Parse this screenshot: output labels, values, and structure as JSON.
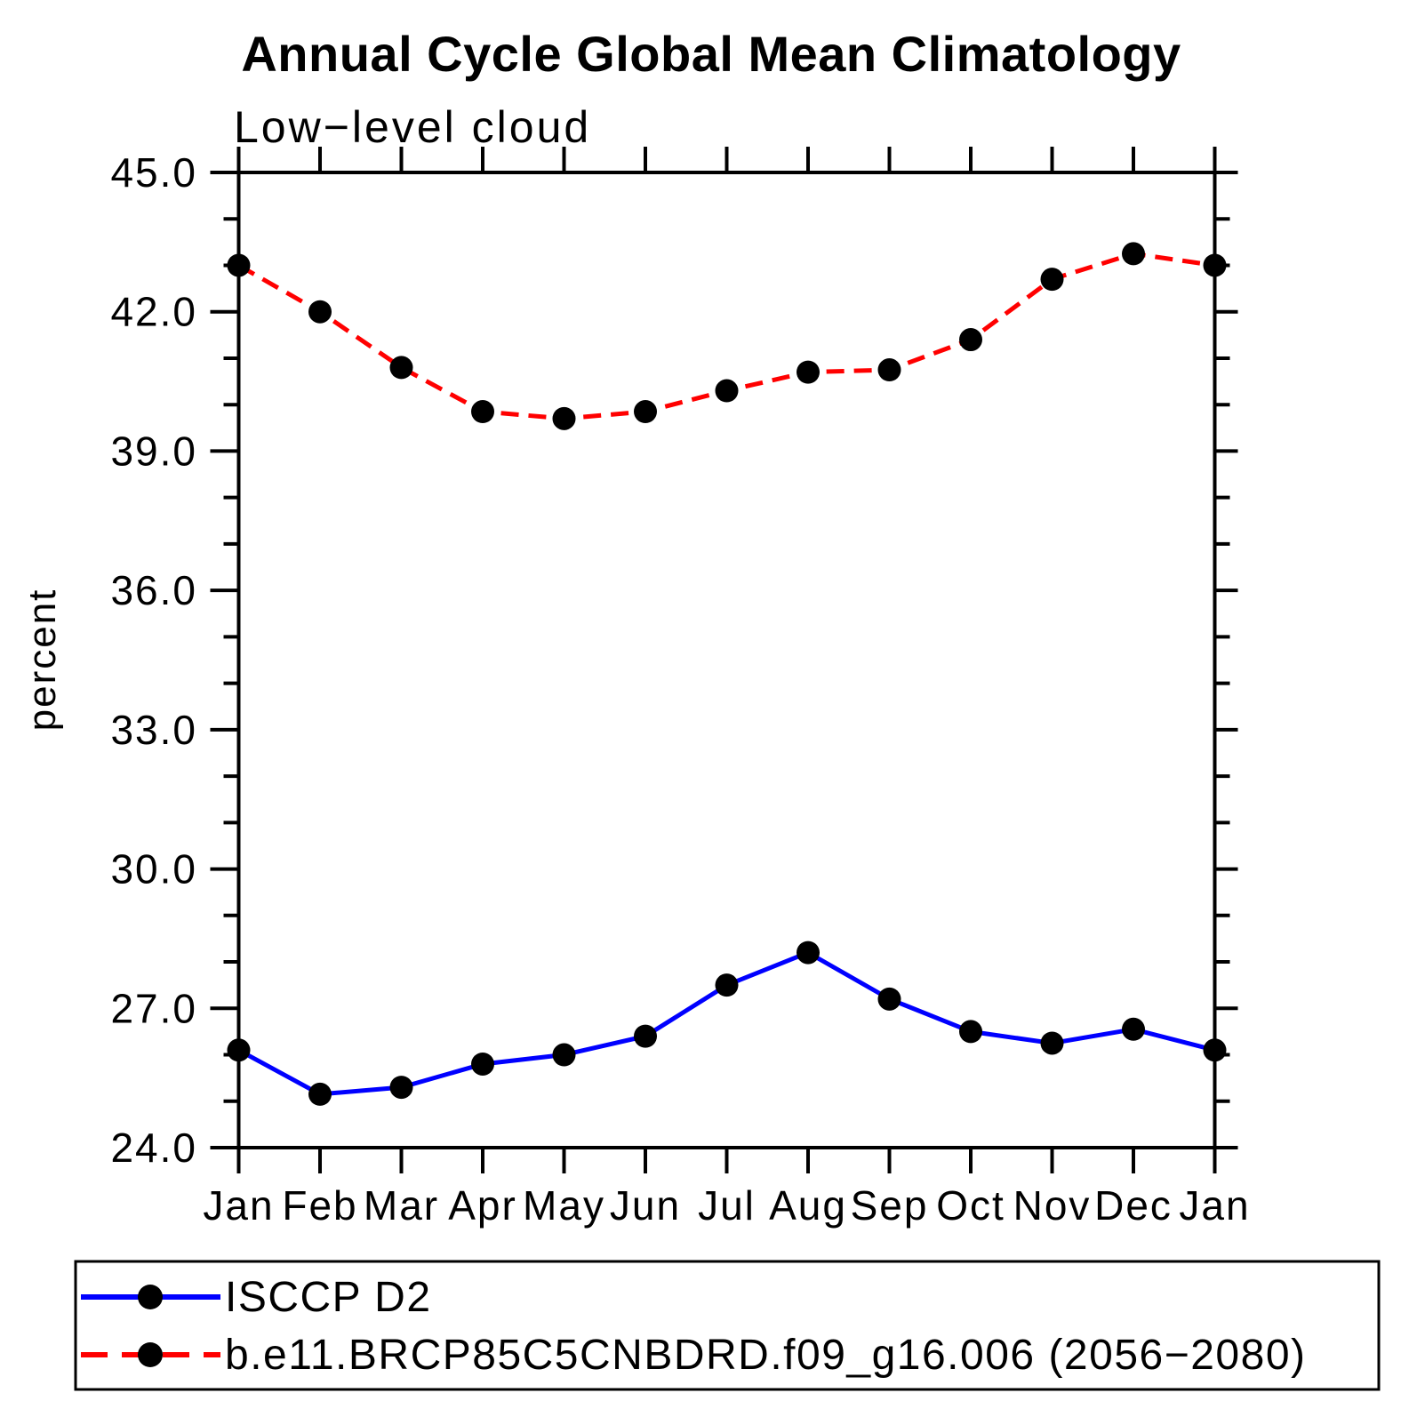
{
  "page": {
    "background_color": "#ffffff",
    "text_color": "#000000"
  },
  "chart_data": {
    "type": "line",
    "title": "Annual Cycle Global Mean Climatology",
    "subtitle": "Low−level cloud",
    "xlabel": "",
    "ylabel": "percent",
    "categories": [
      "Jan",
      "Feb",
      "Mar",
      "Apr",
      "May",
      "Jun",
      "Jul",
      "Aug",
      "Sep",
      "Oct",
      "Nov",
      "Dec",
      "Jan"
    ],
    "y_axis": {
      "min": 24.0,
      "max": 45.0,
      "major_step": 3.0,
      "minor_step": 1.0,
      "major_tick_labels": [
        "24.0",
        "27.0",
        "30.0",
        "33.0",
        "36.0",
        "39.0",
        "42.0",
        "45.0"
      ],
      "grid": false
    },
    "series": [
      {
        "name": "ISCCP D2",
        "line_style": "solid",
        "line_color": "#0000ff",
        "marker": "filled-circle",
        "marker_color": "#000000",
        "values": [
          26.1,
          25.15,
          25.3,
          25.8,
          26.0,
          26.4,
          27.5,
          28.2,
          27.2,
          26.5,
          26.25,
          26.55,
          26.1
        ]
      },
      {
        "name": "b.e11.BRCP85C5CNBDRD.f09_g16.006 (2056−2080)",
        "line_style": "dashed",
        "line_color": "#ff0000",
        "marker": "filled-circle",
        "marker_color": "#000000",
        "values": [
          43.0,
          42.0,
          40.8,
          39.85,
          39.7,
          39.85,
          40.3,
          40.7,
          40.75,
          41.4,
          42.7,
          43.25,
          43.0
        ]
      }
    ],
    "legend": {
      "position": "bottom",
      "border": true,
      "border_color": "#000000"
    }
  }
}
